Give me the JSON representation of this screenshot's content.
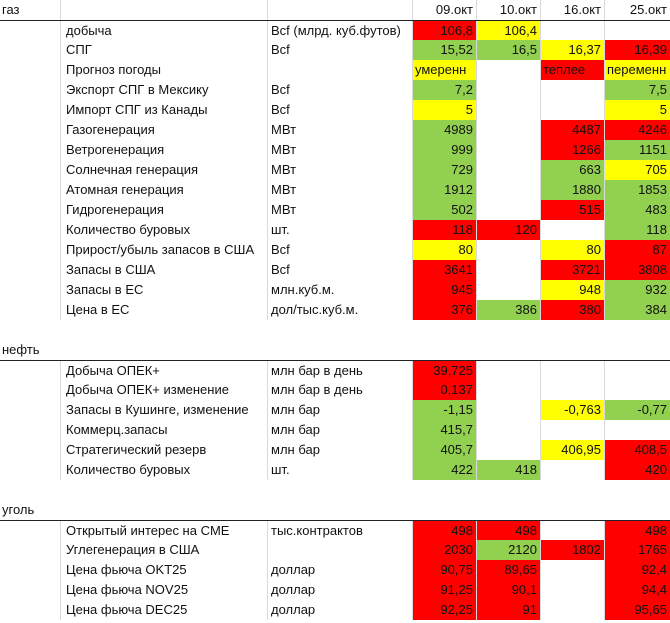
{
  "header": {
    "dates": [
      "09.окт",
      "10.окт",
      "16.окт",
      "25.окт"
    ]
  },
  "sections": [
    {
      "title": "газ",
      "rows": [
        {
          "name": "добыча",
          "unit": "Bcf (млрд. куб.футов)",
          "vals": [
            "106,8",
            "106,4",
            "",
            ""
          ],
          "colors": [
            "red",
            "yel",
            "",
            ""
          ]
        },
        {
          "name": "СПГ",
          "unit": "Bcf",
          "vals": [
            "15,52",
            "16,5",
            "16,37",
            "16,39"
          ],
          "colors": [
            "grn",
            "grn",
            "yel",
            "red"
          ]
        },
        {
          "name": "Прогноз погоды",
          "unit": "",
          "vals": [
            "умеренн",
            "",
            "теплее",
            "переменн"
          ],
          "colors": [
            "yel",
            "",
            "red",
            "yel"
          ]
        },
        {
          "name": "Экспорт СПГ в Мексику",
          "unit": "Bcf",
          "vals": [
            "7,2",
            "",
            "",
            "7,5"
          ],
          "colors": [
            "grn",
            "",
            "",
            "grn"
          ]
        },
        {
          "name": "Импорт СПГ из Канады",
          "unit": "Bcf",
          "vals": [
            "5",
            "",
            "",
            "5"
          ],
          "colors": [
            "yel",
            "",
            "",
            "yel"
          ]
        },
        {
          "name": "Газогенерация",
          "unit": "МВт",
          "vals": [
            "4989",
            "",
            "4487",
            "4246"
          ],
          "colors": [
            "grn",
            "",
            "red",
            "red"
          ]
        },
        {
          "name": "Ветрогенерация",
          "unit": "МВт",
          "vals": [
            "999",
            "",
            "1266",
            "1151"
          ],
          "colors": [
            "grn",
            "",
            "red",
            "grn"
          ]
        },
        {
          "name": "Солнечная генерация",
          "unit": "МВт",
          "vals": [
            "729",
            "",
            "663",
            "705"
          ],
          "colors": [
            "grn",
            "",
            "grn",
            "yel"
          ]
        },
        {
          "name": "Атомная генерация",
          "unit": "МВт",
          "vals": [
            "1912",
            "",
            "1880",
            "1853"
          ],
          "colors": [
            "grn",
            "",
            "grn",
            "grn"
          ]
        },
        {
          "name": "Гидрогенерация",
          "unit": "МВт",
          "vals": [
            "502",
            "",
            "515",
            "483"
          ],
          "colors": [
            "grn",
            "",
            "red",
            "grn"
          ]
        },
        {
          "name": "Количество буровых",
          "unit": "шт.",
          "vals": [
            "118",
            "120",
            "",
            "118"
          ],
          "colors": [
            "red",
            "red",
            "",
            "grn"
          ]
        },
        {
          "name": "Прирост/убыль запасов в США",
          "unit": "Bcf",
          "vals": [
            "80",
            "",
            "80",
            "87"
          ],
          "colors": [
            "yel",
            "",
            "yel",
            "red"
          ]
        },
        {
          "name": "Запасы в США",
          "unit": "Bcf",
          "vals": [
            "3641",
            "",
            "3721",
            "3808"
          ],
          "colors": [
            "red",
            "",
            "red",
            "red"
          ]
        },
        {
          "name": "Запасы в ЕС",
          "unit": "млн.куб.м.",
          "vals": [
            "945",
            "",
            "948",
            "932"
          ],
          "colors": [
            "red",
            "",
            "yel",
            "grn"
          ]
        },
        {
          "name": "Цена в ЕС",
          "unit": "дол/тыс.куб.м.",
          "vals": [
            "376",
            "386",
            "380",
            "384"
          ],
          "colors": [
            "red",
            "grn",
            "red",
            "grn"
          ]
        }
      ]
    },
    {
      "title": "нефть",
      "rows": [
        {
          "name": "Добыча ОПЕК+",
          "unit": "млн бар в день",
          "vals": [
            "39,725",
            "",
            "",
            ""
          ],
          "colors": [
            "red",
            "",
            "",
            ""
          ]
        },
        {
          "name": "Добыча ОПЕК+ изменение",
          "unit": "млн бар в день",
          "vals": [
            "0,137",
            "",
            "",
            ""
          ],
          "colors": [
            "red",
            "",
            "",
            ""
          ]
        },
        {
          "name": "Запасы в Кушинге, изменение",
          "unit": "млн бар",
          "vals": [
            "-1,15",
            "",
            "-0,763",
            "-0,77"
          ],
          "colors": [
            "grn",
            "",
            "yel",
            "grn"
          ]
        },
        {
          "name": "Коммерц.запасы",
          "unit": "млн бар",
          "vals": [
            "415,7",
            "",
            "",
            ""
          ],
          "colors": [
            "grn",
            "",
            "",
            ""
          ]
        },
        {
          "name": "Стратегический резерв",
          "unit": "млн бар",
          "vals": [
            "405,7",
            "",
            "406,95",
            "408,5"
          ],
          "colors": [
            "grn",
            "",
            "yel",
            "red"
          ]
        },
        {
          "name": "Количество буровых",
          "unit": "шт.",
          "vals": [
            "422",
            "418",
            "",
            "420"
          ],
          "colors": [
            "grn",
            "grn",
            "",
            "red"
          ]
        }
      ]
    },
    {
      "title": "уголь",
      "rows": [
        {
          "name": "Открытый интерес на CME",
          "unit": "тыс.контрактов",
          "vals": [
            "498",
            "498",
            "",
            "498"
          ],
          "colors": [
            "red",
            "red",
            "",
            "red"
          ]
        },
        {
          "name": "Углегенерация в США",
          "unit": "",
          "vals": [
            "2030",
            "2120",
            "1802",
            "1765"
          ],
          "colors": [
            "red",
            "grn",
            "red",
            "red"
          ]
        },
        {
          "name": "Цена фьюча OKT25",
          "unit": "доллар",
          "vals": [
            "90,75",
            "89,65",
            "",
            "92,4"
          ],
          "colors": [
            "red",
            "red",
            "",
            "red"
          ]
        },
        {
          "name": "Цена фьюча NOV25",
          "unit": "доллар",
          "vals": [
            "91,25",
            "90,1",
            "",
            "94,4"
          ],
          "colors": [
            "red",
            "red",
            "",
            "red"
          ]
        },
        {
          "name": "Цена фьюча DEC25",
          "unit": "доллар",
          "vals": [
            "92,25",
            "91",
            "",
            "95,65"
          ],
          "colors": [
            "red",
            "red",
            "",
            "red"
          ]
        }
      ]
    }
  ]
}
